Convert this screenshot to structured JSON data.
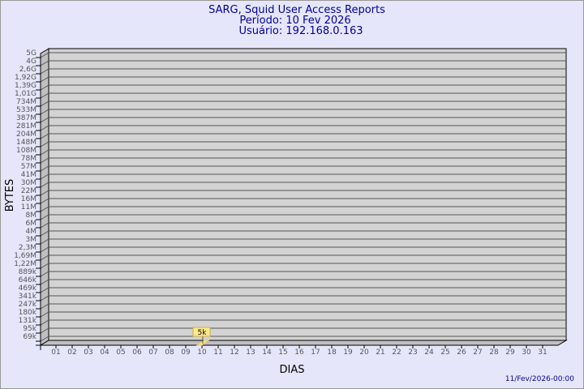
{
  "chart_data": {
    "type": "bar",
    "title": "SARG, Squid User Access Reports",
    "subtitle_period": "Período: 10 Fev 2026",
    "subtitle_user": "Usuário: 192.168.0.163",
    "xlabel": "DIAS",
    "ylabel": "BYTES",
    "y_scale": "log",
    "grid": true,
    "y_tick_labels": [
      "5G",
      "4G",
      "2,6G",
      "1,92G",
      "1,39G",
      "1,01G",
      "734M",
      "533M",
      "387M",
      "281M",
      "204M",
      "148M",
      "108M",
      "78M",
      "57M",
      "41M",
      "30M",
      "22M",
      "16M",
      "11M",
      "8M",
      "6M",
      "4M",
      "3M",
      "2,3M",
      "1,69M",
      "1,22M",
      "889k",
      "646k",
      "469k",
      "341k",
      "247k",
      "180k",
      "131k",
      "95k",
      "69k"
    ],
    "categories": [
      "01",
      "02",
      "03",
      "04",
      "05",
      "06",
      "07",
      "08",
      "09",
      "10",
      "11",
      "12",
      "13",
      "14",
      "15",
      "16",
      "17",
      "18",
      "19",
      "20",
      "21",
      "22",
      "23",
      "24",
      "25",
      "26",
      "27",
      "28",
      "29",
      "30",
      "31"
    ],
    "bars": [
      {
        "day": "10",
        "value_label": "5k",
        "value": 5000
      }
    ],
    "colors": {
      "background": "#e6e6fa",
      "plot": "#d3d3d3",
      "bar": "#ffe88c",
      "title": "#000099"
    }
  },
  "footer": {
    "timestamp": "11/Fev/2026-00:00"
  }
}
